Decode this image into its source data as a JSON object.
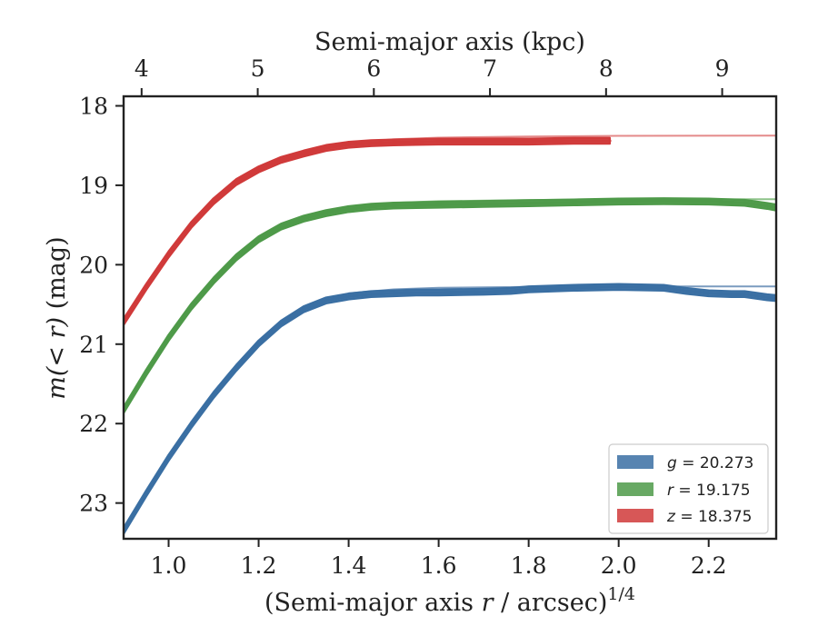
{
  "chart_data": {
    "type": "line",
    "xlabel": {
      "prefix": "(Semi-major axis ",
      "var": "r",
      "suffix": " / arcsec)",
      "sup": "1/4"
    },
    "x2label": "Semi-major axis (kpc)",
    "ylabel": {
      "var": "m",
      "inner": "(< r)",
      "unit": " (mag)"
    },
    "xlim": [
      0.9,
      2.35
    ],
    "ylim": [
      23.45,
      17.88
    ],
    "y_inverted": true,
    "x_ticks": [
      1.0,
      1.2,
      1.4,
      1.6,
      1.8,
      2.0,
      2.2
    ],
    "x_tick_labels": [
      "1.0",
      "1.2",
      "1.4",
      "1.6",
      "1.8",
      "2.0",
      "2.2"
    ],
    "y_ticks": [
      18,
      19,
      20,
      21,
      22,
      23
    ],
    "y_tick_labels": [
      "18",
      "19",
      "20",
      "21",
      "22",
      "23"
    ],
    "x2_ticks": [
      4,
      5,
      6,
      7,
      8,
      9
    ],
    "x2_tick_labels": [
      "4",
      "5",
      "6",
      "7",
      "8",
      "9"
    ],
    "x2_positions": [
      0.94,
      1.198,
      1.456,
      1.714,
      1.972,
      2.23
    ],
    "legend_position": "lower-right",
    "grid": false,
    "series": [
      {
        "band": "g",
        "label": "g = 20.273",
        "label_var": "g",
        "label_value": " = 20.273",
        "color": "#3a6fa3",
        "model_color": "#7a9bbf",
        "width": 0.07,
        "model_asymptote": 20.273,
        "x": [
          0.9,
          0.95,
          1.0,
          1.05,
          1.1,
          1.15,
          1.2,
          1.25,
          1.3,
          1.35,
          1.4,
          1.45,
          1.5,
          1.55,
          1.6,
          1.7,
          1.76,
          1.8,
          1.9,
          2.0,
          2.1,
          2.15,
          2.2,
          2.25,
          2.28,
          2.33,
          2.35
        ],
        "y": [
          23.35,
          22.88,
          22.43,
          22.02,
          21.64,
          21.3,
          20.99,
          20.74,
          20.56,
          20.45,
          20.4,
          20.37,
          20.36,
          20.35,
          20.35,
          20.34,
          20.33,
          20.31,
          20.29,
          20.28,
          20.29,
          20.33,
          20.36,
          20.37,
          20.37,
          20.41,
          20.42
        ],
        "model_x": [
          0.9,
          1.0,
          1.1,
          1.2,
          1.3,
          1.4,
          1.5,
          1.6,
          1.8,
          2.0,
          2.35
        ],
        "model_y": [
          23.35,
          22.43,
          21.64,
          20.99,
          20.55,
          20.36,
          20.31,
          20.29,
          20.28,
          20.275,
          20.273
        ]
      },
      {
        "band": "r",
        "label": "r = 19.175",
        "label_var": "r",
        "label_value": " = 19.175",
        "color": "#4e9a49",
        "model_color": "#8cc288",
        "width": 0.07,
        "model_asymptote": 19.175,
        "x": [
          0.9,
          0.95,
          1.0,
          1.05,
          1.1,
          1.15,
          1.2,
          1.25,
          1.3,
          1.35,
          1.4,
          1.45,
          1.5,
          1.55,
          1.6,
          1.7,
          1.8,
          1.9,
          2.0,
          2.1,
          2.2,
          2.28,
          2.33,
          2.35
        ],
        "y": [
          21.83,
          21.36,
          20.92,
          20.53,
          20.2,
          19.91,
          19.68,
          19.52,
          19.42,
          19.35,
          19.3,
          19.27,
          19.255,
          19.25,
          19.245,
          19.235,
          19.225,
          19.215,
          19.205,
          19.2,
          19.205,
          19.22,
          19.26,
          19.28
        ],
        "model_x": [
          0.9,
          1.0,
          1.1,
          1.2,
          1.3,
          1.4,
          1.5,
          1.6,
          1.8,
          2.0,
          2.35
        ],
        "model_y": [
          21.83,
          20.92,
          20.2,
          19.67,
          19.4,
          19.27,
          19.22,
          19.2,
          19.185,
          19.178,
          19.175
        ]
      },
      {
        "band": "z",
        "label": "z = 18.375",
        "label_var": "z",
        "label_value": " = 18.375",
        "color": "#d03a3a",
        "model_color": "#e48a8a",
        "width": 0.07,
        "model_asymptote": 18.375,
        "x": [
          0.9,
          0.95,
          1.0,
          1.05,
          1.1,
          1.15,
          1.2,
          1.25,
          1.3,
          1.35,
          1.4,
          1.45,
          1.5,
          1.55,
          1.6,
          1.7,
          1.8,
          1.9,
          1.98
        ],
        "y": [
          20.72,
          20.28,
          19.87,
          19.5,
          19.2,
          18.96,
          18.8,
          18.68,
          18.6,
          18.53,
          18.49,
          18.47,
          18.46,
          18.455,
          18.45,
          18.45,
          18.45,
          18.44,
          18.44
        ],
        "model_x": [
          0.9,
          1.0,
          1.1,
          1.2,
          1.3,
          1.4,
          1.5,
          1.6,
          1.8,
          2.0,
          2.35
        ],
        "model_y": [
          20.72,
          19.87,
          19.2,
          18.78,
          18.57,
          18.47,
          18.42,
          18.4,
          18.385,
          18.378,
          18.375
        ]
      }
    ]
  }
}
